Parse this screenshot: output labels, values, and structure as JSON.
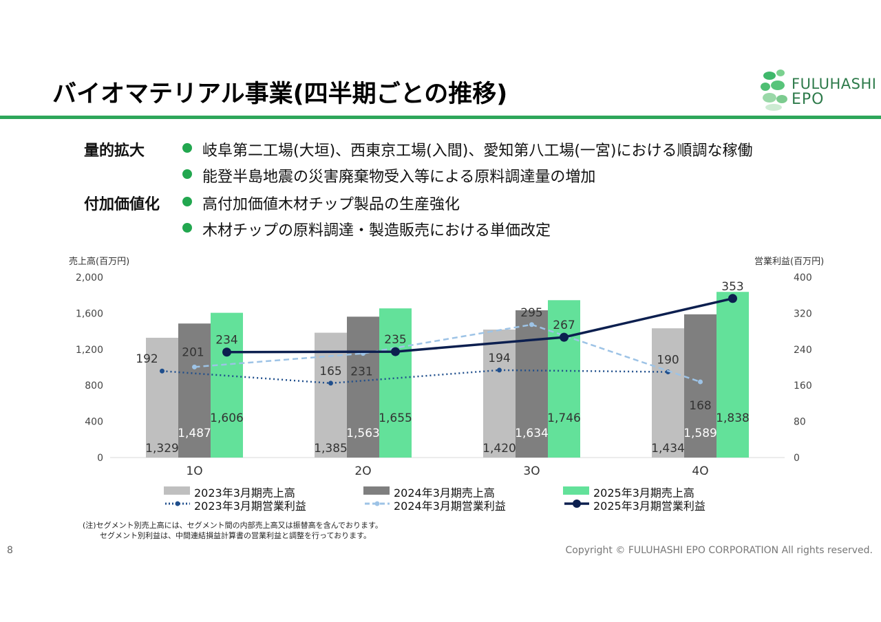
{
  "title": "バイオマテリアル事業(四半期ごとの推移)",
  "logo": {
    "line1": "FULUHASHI",
    "line2": "EPO"
  },
  "bullets": [
    {
      "head": "量的拡大",
      "text": "岐阜第二工場(大垣)、西東京工場(入間)、愛知第八工場(一宮)における順調な稼働"
    },
    {
      "head": "",
      "text": "能登半島地震の災害廃棄物受入等による原料調達量の増加"
    },
    {
      "head": "付加価値化",
      "text": "高付加価値木材チップ製品の生産強化"
    },
    {
      "head": "",
      "text": "木材チップの原料調達・製造販売における単価改定"
    }
  ],
  "colors": {
    "accent": "#2ea65a",
    "bar2023": "#bfbfbf",
    "bar2024": "#7f7f7f",
    "bar2025": "#63e19a",
    "line2023": "#1f4e8c",
    "line2024": "#9dc3e6",
    "line2025": "#0c1f4f"
  },
  "chart_data": {
    "type": "bar",
    "categories": [
      "1Q",
      "2Q",
      "3Q",
      "4Q"
    ],
    "left_axis": {
      "label": "売上高(百万円)",
      "ticks": [
        "2,000",
        "1,600",
        "1,200",
        "800",
        "400",
        "0"
      ],
      "range": [
        0,
        2000
      ]
    },
    "right_axis": {
      "label": "営業利益(百万円)",
      "ticks": [
        "400",
        "320",
        "240",
        "160",
        "80",
        "0"
      ],
      "range": [
        0,
        400
      ]
    },
    "bar_series": [
      {
        "name": "2023年3月期売上高",
        "values": [
          1329,
          1385,
          1420,
          1434
        ],
        "labels": [
          "1,329",
          "1,385",
          "1,420",
          "1,434"
        ]
      },
      {
        "name": "2024年3月期売上高",
        "values": [
          1487,
          1563,
          1634,
          1589
        ],
        "labels": [
          "1,487",
          "1,563",
          "1,634",
          "1,589"
        ]
      },
      {
        "name": "2025年3月期売上高",
        "values": [
          1606,
          1655,
          1746,
          1838
        ],
        "labels": [
          "1,606",
          "1,655",
          "1,746",
          "1,838"
        ]
      }
    ],
    "line_series": [
      {
        "name": "2023年3月期営業利益",
        "values": [
          192,
          165,
          194,
          190
        ],
        "labels": [
          "192",
          "165",
          "194",
          "190"
        ]
      },
      {
        "name": "2024年3月期営業利益",
        "values": [
          201,
          231,
          295,
          168
        ],
        "labels": [
          "201",
          "231",
          "295",
          "168"
        ]
      },
      {
        "name": "2025年3月期営業利益",
        "values": [
          234,
          235,
          267,
          353
        ],
        "labels": [
          "234",
          "235",
          "267",
          "353"
        ]
      }
    ],
    "legend_position": "bottom",
    "grid": false
  },
  "notes": {
    "line1": "(注)セグメント別売上高には、セグメント間の内部売上高又は振替高を含んでおります。",
    "line2": "セグメント別利益は、中間連結損益計算書の営業利益と調整を行っております。"
  },
  "page_number": "8",
  "copyright": "Copyright © FULUHASHI EPO CORPORATION All rights reserved."
}
